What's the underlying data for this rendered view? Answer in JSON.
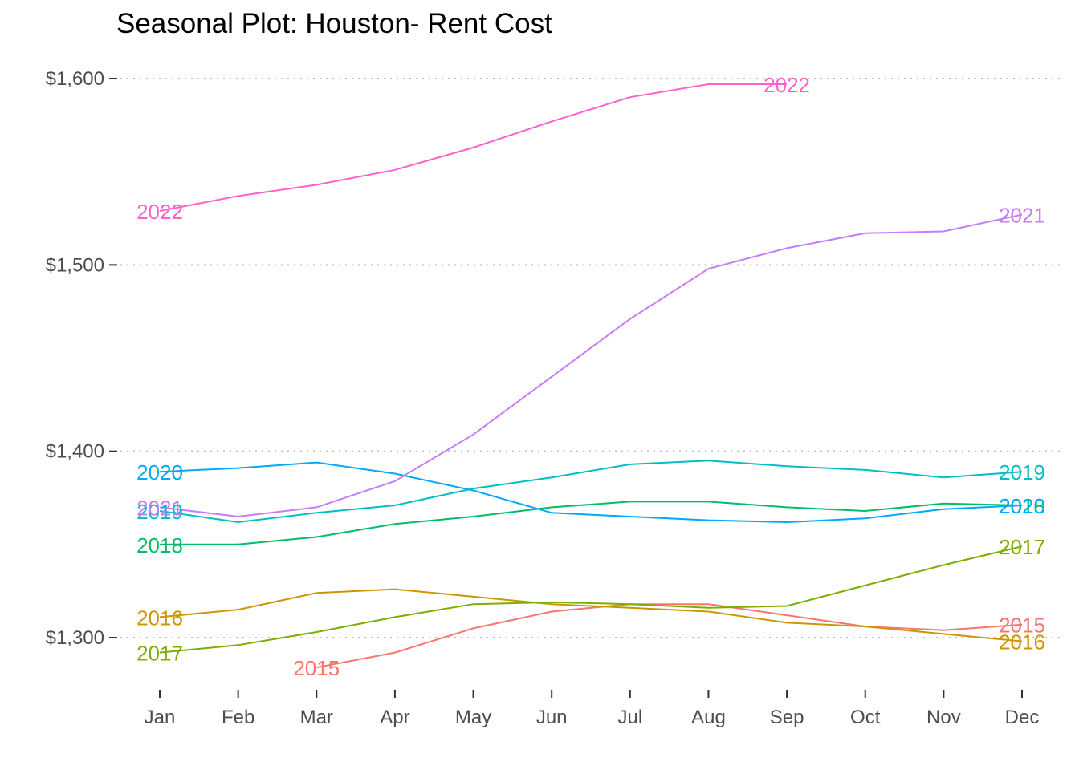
{
  "chart_data": {
    "type": "line",
    "title": "Seasonal Plot: Houston- Rent Cost",
    "xlabel": "",
    "ylabel": "",
    "categories": [
      "Jan",
      "Feb",
      "Mar",
      "Apr",
      "May",
      "Jun",
      "Jul",
      "Aug",
      "Sep",
      "Oct",
      "Nov",
      "Dec"
    ],
    "ylim": [
      1270,
      1620
    ],
    "yticks": [
      1300,
      1400,
      1500,
      1600
    ],
    "ytick_labels": [
      "$1,300",
      "$1,400",
      "$1,500",
      "$1,600"
    ],
    "grid": "horizontal dotted major lines",
    "legend": "none (direct labels at first and last points)",
    "series": [
      {
        "name": "2015",
        "color": "#F8766D",
        "start_index": 2,
        "values": [
          null,
          null,
          1284,
          1292,
          1305,
          1314,
          1318,
          1318,
          1312,
          1306,
          1304,
          1307
        ]
      },
      {
        "name": "2016",
        "color": "#CD9600",
        "start_index": 0,
        "values": [
          1311,
          1315,
          1324,
          1326,
          1322,
          1318,
          1316,
          1314,
          1308,
          1306,
          1302,
          1298
        ]
      },
      {
        "name": "2017",
        "color": "#7CAE00",
        "start_index": 0,
        "values": [
          1292,
          1296,
          1303,
          1311,
          1318,
          1319,
          1318,
          1316,
          1317,
          1328,
          1339,
          1349
        ]
      },
      {
        "name": "2018",
        "color": "#00BE67",
        "start_index": 0,
        "values": [
          1350,
          1350,
          1354,
          1361,
          1365,
          1370,
          1373,
          1373,
          1370,
          1368,
          1372,
          1371
        ]
      },
      {
        "name": "2019",
        "color": "#00BFC4",
        "start_index": 0,
        "values": [
          1368,
          1362,
          1367,
          1371,
          1380,
          1386,
          1393,
          1395,
          1392,
          1390,
          1386,
          1389
        ]
      },
      {
        "name": "2020",
        "color": "#00A9FF",
        "start_index": 0,
        "values": [
          1389,
          1391,
          1394,
          1388,
          1379,
          1367,
          1365,
          1363,
          1362,
          1364,
          1369,
          1371
        ]
      },
      {
        "name": "2021",
        "color": "#C77CFF",
        "start_index": 0,
        "values": [
          1370,
          1365,
          1370,
          1384,
          1409,
          1440,
          1471,
          1498,
          1509,
          1517,
          1518,
          1527
        ]
      },
      {
        "name": "2022",
        "color": "#FF61CC",
        "start_index": 0,
        "values": [
          1529,
          1537,
          1543,
          1551,
          1563,
          1577,
          1590,
          1597,
          1597,
          null,
          null,
          null
        ]
      }
    ]
  }
}
